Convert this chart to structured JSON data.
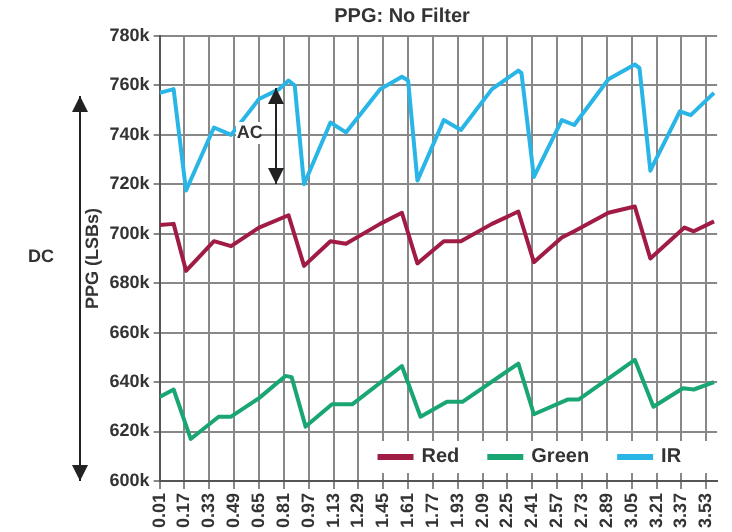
{
  "chart_data": {
    "type": "line",
    "title": "PPG: No Filter",
    "ylabel": "PPG (LSBs)",
    "annotations": [
      "AC",
      "DC"
    ],
    "xlim": [
      0.01,
      3.6
    ],
    "xticks": [
      0.01,
      0.17,
      0.33,
      0.49,
      0.65,
      0.81,
      0.97,
      1.13,
      1.29,
      1.45,
      1.61,
      1.77,
      1.93,
      2.09,
      2.25,
      2.41,
      2.57,
      2.73,
      2.89,
      3.05,
      3.21,
      3.37,
      3.53
    ],
    "ylim": [
      600000,
      780000
    ],
    "yticks": [
      {
        "value": 600000,
        "label": "600k"
      },
      {
        "value": 620000,
        "label": "620k"
      },
      {
        "value": 640000,
        "label": "640k"
      },
      {
        "value": 660000,
        "label": "660k"
      },
      {
        "value": 680000,
        "label": "680k"
      },
      {
        "value": 700000,
        "label": "700k"
      },
      {
        "value": 720000,
        "label": "720k"
      },
      {
        "value": 740000,
        "label": "740k"
      },
      {
        "value": 760000,
        "label": "760k"
      },
      {
        "value": 780000,
        "label": "780k"
      }
    ],
    "grid": true,
    "legend": "bottom right",
    "marker": "none",
    "line_style": "solid",
    "series": [
      {
        "name": "Red",
        "color": "#a01c45",
        "x": [
          0.01,
          0.1,
          0.18,
          0.36,
          0.47,
          0.65,
          0.84,
          0.94,
          1.11,
          1.21,
          1.43,
          1.57,
          1.67,
          1.84,
          1.95,
          2.15,
          2.32,
          2.42,
          2.6,
          2.68,
          2.9,
          3.07,
          3.17,
          3.39,
          3.45,
          3.58
        ],
        "values": [
          703500,
          704000,
          685000,
          697000,
          695000,
          702500,
          707500,
          687000,
          697000,
          696000,
          704000,
          708500,
          688000,
          697000,
          697000,
          704000,
          709000,
          688500,
          698500,
          701000,
          708500,
          711000,
          690000,
          702500,
          701000,
          705000
        ]
      },
      {
        "name": "Green",
        "color": "#1aa672",
        "x": [
          0.01,
          0.1,
          0.21,
          0.39,
          0.47,
          0.65,
          0.82,
          0.86,
          0.95,
          1.12,
          1.25,
          1.57,
          1.69,
          1.86,
          1.96,
          2.32,
          2.42,
          2.64,
          2.71,
          3.07,
          3.19,
          3.38,
          3.45,
          3.58
        ],
        "values": [
          634000,
          637000,
          617000,
          626000,
          626000,
          633500,
          642500,
          642000,
          622000,
          631000,
          631000,
          646500,
          626000,
          632000,
          632000,
          647500,
          627000,
          633000,
          633000,
          649000,
          630000,
          637500,
          637000,
          640000
        ]
      },
      {
        "name": "IR",
        "color": "#29b6e6",
        "x": [
          0.01,
          0.1,
          0.18,
          0.36,
          0.47,
          0.65,
          0.78,
          0.84,
          0.88,
          0.94,
          1.11,
          1.21,
          1.43,
          1.57,
          1.61,
          1.67,
          1.84,
          1.95,
          2.15,
          2.32,
          2.34,
          2.42,
          2.6,
          2.68,
          2.9,
          3.07,
          3.1,
          3.17,
          3.36,
          3.43,
          3.58
        ],
        "values": [
          757000,
          758500,
          717500,
          743000,
          740000,
          754500,
          758500,
          762000,
          760000,
          720000,
          745000,
          741000,
          758500,
          763500,
          762000,
          721500,
          746000,
          742000,
          758500,
          766000,
          765000,
          723000,
          746000,
          744000,
          762500,
          768500,
          767000,
          725500,
          749500,
          748000,
          757000
        ]
      }
    ]
  }
}
